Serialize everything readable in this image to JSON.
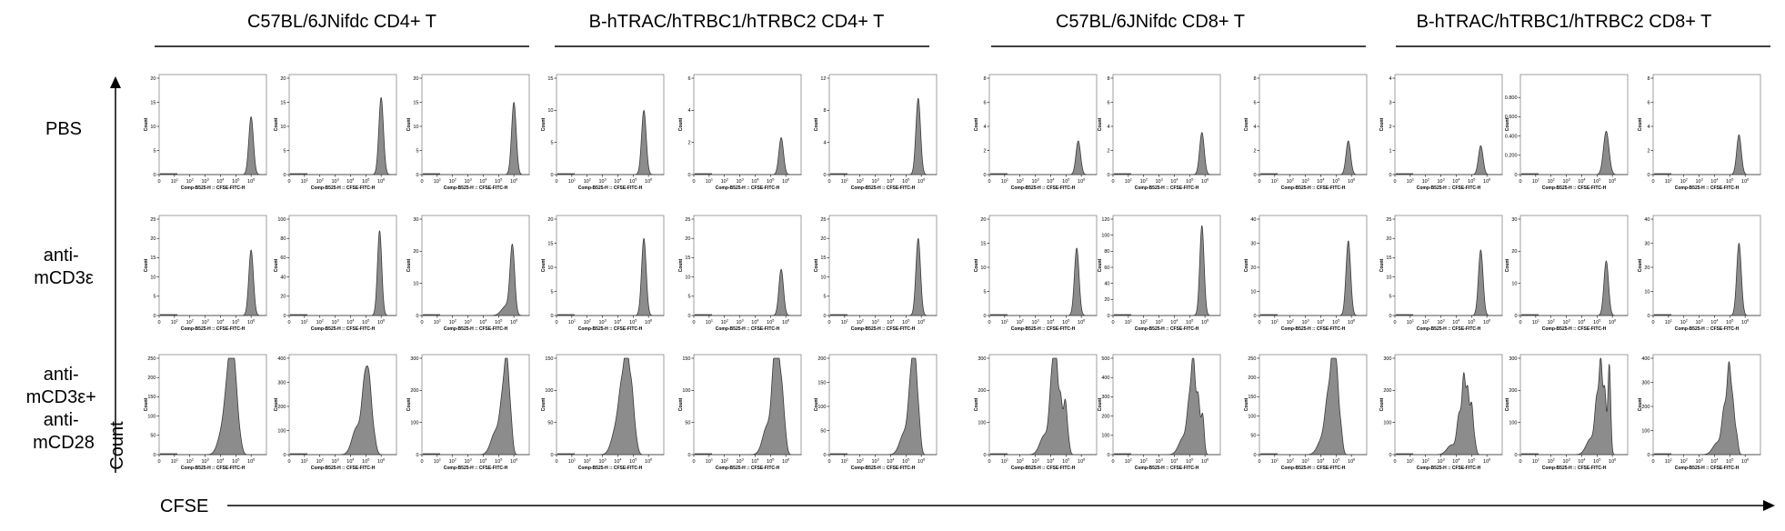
{
  "groups": [
    {
      "title": "C57BL/6JNifdc CD4+ T"
    },
    {
      "title": "B-hTRAC/hTRBC1/hTRBC2  CD4+ T"
    },
    {
      "title": "C57BL/6JNifdc CD8+ T"
    },
    {
      "title": "B-hTRAC/hTRBC1/hTRBC2  CD8+ T"
    }
  ],
  "rows": [
    {
      "lines": [
        "PBS"
      ]
    },
    {
      "lines": [
        "anti-",
        "mCD3ε"
      ]
    },
    {
      "lines": [
        "anti-",
        "mCD3ε+",
        "anti-",
        "mCD28"
      ]
    }
  ],
  "axes": {
    "x_title": "CFSE",
    "y_title": "Count",
    "panel_ylabel": "Count",
    "panel_xlabel": "Comp-B525-H :: CFSE-FITC-H",
    "x_ticks": [
      "0",
      "10",
      "10",
      "10",
      "10",
      "10",
      "10"
    ],
    "x_tick_exponents": [
      "",
      "1",
      "2",
      "3",
      "4",
      "5",
      "6"
    ]
  },
  "colors": {
    "fill": "#8c8c8c",
    "stroke": "#3a3a3a",
    "frame": "#888888",
    "text": "#000000"
  },
  "chart_data": [
    {
      "type": "area",
      "group": "C57BL/6JNifdc CD4+ T",
      "replicate": 1,
      "condition": "PBS",
      "ylim": [
        0,
        20
      ],
      "y_ticks": [
        0,
        5,
        10,
        15,
        20
      ],
      "peaks": [
        {
          "x": 6.0,
          "h": 12.0,
          "w": 0.15
        }
      ]
    },
    {
      "type": "area",
      "group": "C57BL/6JNifdc CD4+ T",
      "replicate": 2,
      "condition": "PBS",
      "ylim": [
        0,
        20
      ],
      "y_ticks": [
        0,
        5,
        10,
        15,
        20
      ],
      "peaks": [
        {
          "x": 6.0,
          "h": 16.0,
          "w": 0.15
        }
      ]
    },
    {
      "type": "area",
      "group": "C57BL/6JNifdc CD4+ T",
      "replicate": 3,
      "condition": "PBS",
      "ylim": [
        0,
        20
      ],
      "y_ticks": [
        0,
        5,
        10,
        15,
        20
      ],
      "peaks": [
        {
          "x": 6.0,
          "h": 15.0,
          "w": 0.15
        }
      ]
    },
    {
      "type": "area",
      "group": "B-hTRAC/hTRBC1/hTRBC2  CD4+ T",
      "replicate": 1,
      "condition": "PBS",
      "ylim": [
        0,
        15
      ],
      "y_ticks": [
        0,
        5,
        10,
        15
      ],
      "peaks": [
        {
          "x": 5.7,
          "h": 10.0,
          "w": 0.15
        }
      ]
    },
    {
      "type": "area",
      "group": "B-hTRAC/hTRBC1/hTRBC2  CD4+ T",
      "replicate": 2,
      "condition": "PBS",
      "ylim": [
        0,
        6
      ],
      "y_ticks": [
        0,
        2,
        4,
        6
      ],
      "peaks": [
        {
          "x": 5.7,
          "h": 2.3,
          "w": 0.15
        }
      ]
    },
    {
      "type": "area",
      "group": "B-hTRAC/hTRBC1/hTRBC2  CD4+ T",
      "replicate": 3,
      "condition": "PBS",
      "ylim": [
        0,
        12
      ],
      "y_ticks": [
        0,
        4,
        8,
        12
      ],
      "peaks": [
        {
          "x": 5.8,
          "h": 9.5,
          "w": 0.15
        }
      ]
    },
    {
      "type": "area",
      "group": "C57BL/6JNifdc CD8+ T",
      "replicate": 1,
      "condition": "PBS",
      "ylim": [
        0,
        8
      ],
      "y_ticks": [
        0,
        2,
        4,
        6,
        8
      ],
      "peaks": [
        {
          "x": 5.8,
          "h": 2.8,
          "w": 0.15
        }
      ]
    },
    {
      "type": "area",
      "group": "C57BL/6JNifdc CD8+ T",
      "replicate": 2,
      "condition": "PBS",
      "ylim": [
        0,
        8
      ],
      "y_ticks": [
        0,
        2,
        4,
        6,
        8
      ],
      "peaks": [
        {
          "x": 5.8,
          "h": 3.5,
          "w": 0.15
        }
      ]
    },
    {
      "type": "area",
      "group": "C57BL/6JNifdc CD8+ T",
      "replicate": 3,
      "condition": "PBS",
      "ylim": [
        0,
        8
      ],
      "y_ticks": [
        0,
        2,
        4,
        6,
        8
      ],
      "peaks": [
        {
          "x": 5.8,
          "h": 2.8,
          "w": 0.15
        }
      ]
    },
    {
      "type": "area",
      "group": "B-hTRAC/hTRBC1/hTRBC2  CD8+ T",
      "replicate": 1,
      "condition": "PBS",
      "ylim": [
        0,
        4
      ],
      "y_ticks": [
        0,
        1,
        2,
        3,
        4
      ],
      "peaks": [
        {
          "x": 5.6,
          "h": 1.2,
          "w": 0.15
        }
      ]
    },
    {
      "type": "area",
      "group": "B-hTRAC/hTRBC1/hTRBC2  CD8+ T",
      "replicate": 2,
      "condition": "PBS",
      "ylim": [
        0,
        1
      ],
      "y_ticks": [
        0,
        0.2,
        0.4,
        0.6,
        0.8
      ],
      "peaks": [
        {
          "x": 5.6,
          "h": 0.45,
          "w": 0.18
        }
      ]
    },
    {
      "type": "area",
      "group": "B-hTRAC/hTRBC1/hTRBC2  CD8+ T",
      "replicate": 3,
      "condition": "PBS",
      "ylim": [
        0,
        8
      ],
      "y_ticks": [
        0,
        2,
        4,
        6,
        8
      ],
      "peaks": [
        {
          "x": 5.6,
          "h": 3.3,
          "w": 0.15
        }
      ]
    },
    {
      "type": "area",
      "group": "C57BL/6JNifdc CD4+ T",
      "replicate": 1,
      "condition": "anti-mCD3ε",
      "ylim": [
        0,
        25
      ],
      "y_ticks": [
        0,
        5,
        10,
        15,
        20,
        25
      ],
      "peaks": [
        {
          "x": 6.0,
          "h": 17.0,
          "w": 0.15
        }
      ]
    },
    {
      "type": "area",
      "group": "C57BL/6JNifdc CD4+ T",
      "replicate": 2,
      "condition": "anti-mCD3ε",
      "ylim": [
        0,
        100
      ],
      "y_ticks": [
        0,
        20,
        40,
        60,
        80,
        100
      ],
      "peaks": [
        {
          "x": 5.9,
          "h": 88.0,
          "w": 0.14
        }
      ]
    },
    {
      "type": "area",
      "group": "C57BL/6JNifdc CD4+ T",
      "replicate": 3,
      "condition": "anti-mCD3ε",
      "ylim": [
        0,
        30
      ],
      "y_ticks": [
        0,
        10,
        20,
        30
      ],
      "peaks": [
        {
          "x": 5.9,
          "h": 21.0,
          "w": 0.15
        },
        {
          "x": 5.5,
          "h": 3.0,
          "w": 0.3
        }
      ]
    },
    {
      "type": "area",
      "group": "B-hTRAC/hTRBC1/hTRBC2  CD4+ T",
      "replicate": 1,
      "condition": "anti-mCD3ε",
      "ylim": [
        0,
        20
      ],
      "y_ticks": [
        0,
        5,
        10,
        15,
        20
      ],
      "peaks": [
        {
          "x": 5.7,
          "h": 16.0,
          "w": 0.15
        }
      ]
    },
    {
      "type": "area",
      "group": "B-hTRAC/hTRBC1/hTRBC2  CD4+ T",
      "replicate": 2,
      "condition": "anti-mCD3ε",
      "ylim": [
        0,
        25
      ],
      "y_ticks": [
        0,
        5,
        10,
        15,
        20,
        25
      ],
      "peaks": [
        {
          "x": 5.7,
          "h": 12.0,
          "w": 0.15
        }
      ]
    },
    {
      "type": "area",
      "group": "B-hTRAC/hTRBC1/hTRBC2  CD4+ T",
      "replicate": 3,
      "condition": "anti-mCD3ε",
      "ylim": [
        0,
        25
      ],
      "y_ticks": [
        0,
        5,
        10,
        15,
        20,
        25
      ],
      "peaks": [
        {
          "x": 5.8,
          "h": 20.0,
          "w": 0.15
        }
      ]
    },
    {
      "type": "area",
      "group": "C57BL/6JNifdc CD8+ T",
      "replicate": 1,
      "condition": "anti-mCD3ε",
      "ylim": [
        0,
        20
      ],
      "y_ticks": [
        0,
        5,
        10,
        15,
        20
      ],
      "peaks": [
        {
          "x": 5.7,
          "h": 14.0,
          "w": 0.15
        }
      ]
    },
    {
      "type": "area",
      "group": "C57BL/6JNifdc CD8+ T",
      "replicate": 2,
      "condition": "anti-mCD3ε",
      "ylim": [
        0,
        120
      ],
      "y_ticks": [
        0,
        20,
        40,
        60,
        80,
        100,
        120
      ],
      "peaks": [
        {
          "x": 5.8,
          "h": 112.0,
          "w": 0.14
        }
      ]
    },
    {
      "type": "area",
      "group": "C57BL/6JNifdc CD8+ T",
      "replicate": 3,
      "condition": "anti-mCD3ε",
      "ylim": [
        0,
        40
      ],
      "y_ticks": [
        0,
        10,
        20,
        30,
        40
      ],
      "peaks": [
        {
          "x": 5.8,
          "h": 31.0,
          "w": 0.15
        }
      ]
    },
    {
      "type": "area",
      "group": "B-hTRAC/hTRBC1/hTRBC2  CD8+ T",
      "replicate": 1,
      "condition": "anti-mCD3ε",
      "ylim": [
        0,
        25
      ],
      "y_ticks": [
        0,
        5,
        10,
        15,
        20,
        25
      ],
      "peaks": [
        {
          "x": 5.6,
          "h": 17.0,
          "w": 0.15
        }
      ]
    },
    {
      "type": "area",
      "group": "B-hTRAC/hTRBC1/hTRBC2  CD8+ T",
      "replicate": 2,
      "condition": "anti-mCD3ε",
      "ylim": [
        0,
        30
      ],
      "y_ticks": [
        0,
        10,
        20,
        30
      ],
      "peaks": [
        {
          "x": 5.6,
          "h": 17.0,
          "w": 0.15
        }
      ]
    },
    {
      "type": "area",
      "group": "B-hTRAC/hTRBC1/hTRBC2  CD8+ T",
      "replicate": 3,
      "condition": "anti-mCD3ε",
      "ylim": [
        0,
        40
      ],
      "y_ticks": [
        0,
        10,
        20,
        30,
        40
      ],
      "peaks": [
        {
          "x": 5.6,
          "h": 30.0,
          "w": 0.15
        }
      ]
    },
    {
      "type": "area",
      "group": "C57BL/6JNifdc CD4+ T",
      "replicate": 1,
      "condition": "anti-mCD3ε+ anti-mCD28",
      "ylim": [
        0,
        250
      ],
      "y_ticks": [
        0,
        50,
        100,
        150,
        200,
        250
      ],
      "peaks": [
        {
          "x": 4.1,
          "h": 55.0,
          "w": 0.28
        },
        {
          "x": 4.5,
          "h": 170.0,
          "w": 0.22
        },
        {
          "x": 4.75,
          "h": 185.0,
          "w": 0.16
        },
        {
          "x": 5.0,
          "h": 130.0,
          "w": 0.15
        },
        {
          "x": 5.25,
          "h": 40.0,
          "w": 0.15
        }
      ]
    },
    {
      "type": "area",
      "group": "C57BL/6JNifdc CD4+ T",
      "replicate": 2,
      "condition": "anti-mCD3ε+ anti-mCD28",
      "ylim": [
        0,
        400
      ],
      "y_ticks": [
        0,
        100,
        200,
        300,
        400
      ],
      "peaks": [
        {
          "x": 4.4,
          "h": 110.0,
          "w": 0.3
        },
        {
          "x": 4.95,
          "h": 290.0,
          "w": 0.2
        },
        {
          "x": 5.25,
          "h": 220.0,
          "w": 0.16
        },
        {
          "x": 5.55,
          "h": 60.0,
          "w": 0.14
        }
      ]
    },
    {
      "type": "area",
      "group": "C57BL/6JNifdc CD4+ T",
      "replicate": 3,
      "condition": "anti-mCD3ε+ anti-mCD28",
      "ylim": [
        0,
        300
      ],
      "y_ticks": [
        0,
        100,
        200,
        300
      ],
      "peaks": [
        {
          "x": 4.8,
          "h": 70.0,
          "w": 0.3
        },
        {
          "x": 5.3,
          "h": 170.0,
          "w": 0.2
        },
        {
          "x": 5.55,
          "h": 220.0,
          "w": 0.14
        },
        {
          "x": 5.8,
          "h": 90.0,
          "w": 0.12
        }
      ]
    },
    {
      "type": "area",
      "group": "B-hTRAC/hTRBC1/hTRBC2  CD4+ T",
      "replicate": 1,
      "condition": "anti-mCD3ε+ anti-mCD28",
      "ylim": [
        0,
        150
      ],
      "y_ticks": [
        0,
        50,
        100,
        150
      ],
      "peaks": [
        {
          "x": 3.9,
          "h": 40.0,
          "w": 0.3
        },
        {
          "x": 4.3,
          "h": 95.0,
          "w": 0.22
        },
        {
          "x": 4.6,
          "h": 125.0,
          "w": 0.15
        },
        {
          "x": 4.9,
          "h": 90.0,
          "w": 0.14
        },
        {
          "x": 5.15,
          "h": 25.0,
          "w": 0.14
        }
      ]
    },
    {
      "type": "area",
      "group": "B-hTRAC/hTRBC1/hTRBC2  CD4+ T",
      "replicate": 2,
      "condition": "anti-mCD3ε+ anti-mCD28",
      "ylim": [
        0,
        150
      ],
      "y_ticks": [
        0,
        50,
        100,
        150
      ],
      "peaks": [
        {
          "x": 4.8,
          "h": 45.0,
          "w": 0.3
        },
        {
          "x": 5.25,
          "h": 125.0,
          "w": 0.17
        },
        {
          "x": 5.5,
          "h": 120.0,
          "w": 0.14
        },
        {
          "x": 5.75,
          "h": 80.0,
          "w": 0.12
        },
        {
          "x": 5.95,
          "h": 30.0,
          "w": 0.12
        }
      ]
    },
    {
      "type": "area",
      "group": "B-hTRAC/hTRBC1/hTRBC2  CD4+ T",
      "replicate": 3,
      "condition": "anti-mCD3ε+ anti-mCD28",
      "ylim": [
        0,
        200
      ],
      "y_ticks": [
        0,
        50,
        100,
        150,
        200
      ],
      "peaks": [
        {
          "x": 4.9,
          "h": 45.0,
          "w": 0.3
        },
        {
          "x": 5.35,
          "h": 145.0,
          "w": 0.18
        },
        {
          "x": 5.6,
          "h": 150.0,
          "w": 0.14
        },
        {
          "x": 5.85,
          "h": 60.0,
          "w": 0.12
        }
      ]
    },
    {
      "type": "area",
      "group": "C57BL/6JNifdc CD8+ T",
      "replicate": 1,
      "condition": "anti-mCD3ε+ anti-mCD28",
      "ylim": [
        0,
        300
      ],
      "y_ticks": [
        0,
        100,
        200,
        300
      ],
      "peaks": [
        {
          "x": 3.6,
          "h": 60.0,
          "w": 0.3
        },
        {
          "x": 4.1,
          "h": 230.0,
          "w": 0.17
        },
        {
          "x": 4.35,
          "h": 250.0,
          "w": 0.13
        },
        {
          "x": 4.65,
          "h": 170.0,
          "w": 0.12
        },
        {
          "x": 4.95,
          "h": 160.0,
          "w": 0.11
        },
        {
          "x": 5.15,
          "h": 40.0,
          "w": 0.1
        }
      ]
    },
    {
      "type": "area",
      "group": "C57BL/6JNifdc CD8+ T",
      "replicate": 2,
      "condition": "anti-mCD3ε+ anti-mCD28",
      "ylim": [
        0,
        500
      ],
      "y_ticks": [
        0,
        100,
        200,
        300,
        400,
        500
      ],
      "peaks": [
        {
          "x": 4.6,
          "h": 90.0,
          "w": 0.3
        },
        {
          "x": 5.0,
          "h": 250.0,
          "w": 0.16
        },
        {
          "x": 5.25,
          "h": 420.0,
          "w": 0.12
        },
        {
          "x": 5.55,
          "h": 300.0,
          "w": 0.12
        },
        {
          "x": 5.85,
          "h": 200.0,
          "w": 0.1
        }
      ]
    },
    {
      "type": "area",
      "group": "C57BL/6JNifdc CD8+ T",
      "replicate": 3,
      "condition": "anti-mCD3ε+ anti-mCD28",
      "ylim": [
        0,
        250
      ],
      "y_ticks": [
        0,
        50,
        100,
        150,
        200,
        250
      ],
      "peaks": [
        {
          "x": 4.1,
          "h": 40.0,
          "w": 0.3
        },
        {
          "x": 4.5,
          "h": 140.0,
          "w": 0.2
        },
        {
          "x": 4.8,
          "h": 210.0,
          "w": 0.14
        },
        {
          "x": 5.05,
          "h": 180.0,
          "w": 0.12
        },
        {
          "x": 5.3,
          "h": 70.0,
          "w": 0.12
        }
      ]
    },
    {
      "type": "area",
      "group": "B-hTRAC/hTRBC1/hTRBC2  CD8+ T",
      "replicate": 1,
      "condition": "anti-mCD3ε+ anti-mCD28",
      "ylim": [
        0,
        300
      ],
      "y_ticks": [
        0,
        100,
        200,
        300
      ],
      "peaks": [
        {
          "x": 3.7,
          "h": 30.0,
          "w": 0.3
        },
        {
          "x": 4.2,
          "h": 120.0,
          "w": 0.15
        },
        {
          "x": 4.5,
          "h": 230.0,
          "w": 0.11
        },
        {
          "x": 4.75,
          "h": 190.0,
          "w": 0.1
        },
        {
          "x": 5.0,
          "h": 150.0,
          "w": 0.1
        },
        {
          "x": 5.2,
          "h": 40.0,
          "w": 0.1
        }
      ]
    },
    {
      "type": "area",
      "group": "B-hTRAC/hTRBC1/hTRBC2  CD8+ T",
      "replicate": 2,
      "condition": "anti-mCD3ε+ anti-mCD28",
      "ylim": [
        0,
        300
      ],
      "y_ticks": [
        0,
        100,
        200,
        300
      ],
      "peaks": [
        {
          "x": 4.6,
          "h": 50.0,
          "w": 0.3
        },
        {
          "x": 5.0,
          "h": 160.0,
          "w": 0.14
        },
        {
          "x": 5.25,
          "h": 260.0,
          "w": 0.1
        },
        {
          "x": 5.5,
          "h": 200.0,
          "w": 0.1
        },
        {
          "x": 5.8,
          "h": 280.0,
          "w": 0.09
        }
      ]
    },
    {
      "type": "area",
      "group": "B-hTRAC/hTRBC1/hTRBC2  CD8+ T",
      "replicate": 3,
      "condition": "anti-mCD3ε+ anti-mCD28",
      "ylim": [
        0,
        400
      ],
      "y_ticks": [
        0,
        100,
        200,
        300,
        400
      ],
      "peaks": [
        {
          "x": 4.2,
          "h": 50.0,
          "w": 0.3
        },
        {
          "x": 4.65,
          "h": 180.0,
          "w": 0.16
        },
        {
          "x": 4.95,
          "h": 330.0,
          "w": 0.12
        },
        {
          "x": 5.2,
          "h": 200.0,
          "w": 0.12
        },
        {
          "x": 5.45,
          "h": 70.0,
          "w": 0.1
        }
      ]
    }
  ]
}
